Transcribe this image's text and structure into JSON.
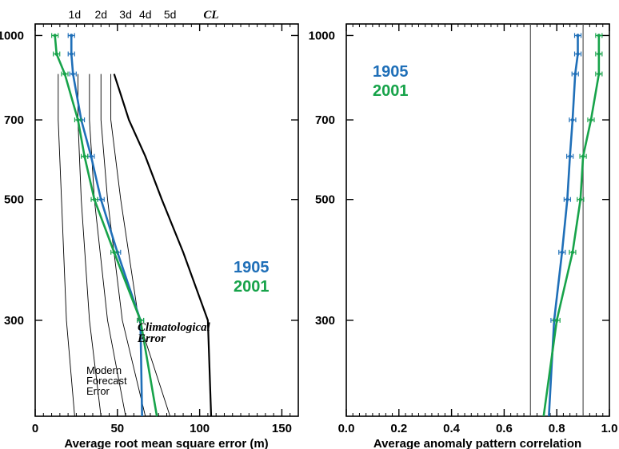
{
  "colors": {
    "y1905": "#1f6fb8",
    "y2001": "#17a34a",
    "frame": "#000000",
    "guide": "#555555"
  },
  "chart_data": [
    {
      "type": "line",
      "xlabel": "Average root mean square error (m)",
      "ylabel": "",
      "xlim": [
        0,
        160
      ],
      "ylim": [
        1050,
        200
      ],
      "y_scale": "log",
      "x_ticks": [
        0,
        50,
        100,
        150
      ],
      "y_ticks": [
        300,
        500,
        700,
        1000
      ],
      "legend": [
        "1905",
        "2001"
      ],
      "legend_placement": "right-middle",
      "series": [
        {
          "name": "1905",
          "color": "#1f6fb8",
          "x": [
            22,
            22,
            23,
            28,
            34,
            40,
            50,
            64,
            65
          ],
          "y": [
            1000,
            925,
            850,
            700,
            600,
            500,
            400,
            300,
            200
          ]
        },
        {
          "name": "2001",
          "color": "#17a34a",
          "x": [
            12,
            13,
            18,
            26,
            30,
            36,
            48,
            64,
            74
          ],
          "y": [
            1000,
            925,
            850,
            700,
            600,
            500,
            400,
            300,
            200
          ]
        }
      ],
      "reference_lines": [
        {
          "label": "1d",
          "x": [
            14,
            14,
            16,
            19,
            24
          ],
          "y": [
            850,
            700,
            500,
            300,
            200
          ]
        },
        {
          "label": "2d",
          "x": [
            26,
            26,
            28,
            33,
            40
          ],
          "y": [
            850,
            700,
            500,
            300,
            200
          ]
        },
        {
          "label": "3d",
          "x": [
            33,
            33,
            36,
            44,
            55
          ],
          "y": [
            850,
            700,
            500,
            300,
            200
          ]
        },
        {
          "label": "4d",
          "x": [
            40,
            40,
            44,
            53,
            67
          ],
          "y": [
            850,
            700,
            500,
            300,
            200
          ]
        },
        {
          "label": "5d",
          "x": [
            46,
            46,
            52,
            63,
            82
          ],
          "y": [
            850,
            700,
            500,
            300,
            200
          ]
        },
        {
          "label": "CL",
          "x": [
            48,
            52,
            57,
            67,
            77,
            90,
            105,
            107
          ],
          "y": [
            850,
            780,
            700,
            600,
            500,
            400,
            300,
            200
          ]
        }
      ],
      "annotations": [
        "Climatological Error",
        "Modern Forecast Error"
      ]
    },
    {
      "type": "line",
      "xlabel": "Average anomaly pattern correlation",
      "ylabel": "",
      "xlim": [
        0.0,
        1.0
      ],
      "ylim": [
        1050,
        200
      ],
      "y_scale": "log",
      "x_ticks": [
        0.0,
        0.2,
        0.4,
        0.6,
        0.8,
        1.0
      ],
      "y_ticks": [
        300,
        500,
        700,
        1000
      ],
      "vertical_lines": [
        0.7,
        0.9
      ],
      "legend": [
        "1905",
        "2001"
      ],
      "legend_placement": "top-left",
      "series": [
        {
          "name": "1905",
          "color": "#1f6fb8",
          "x": [
            0.88,
            0.88,
            0.87,
            0.86,
            0.85,
            0.84,
            0.82,
            0.79,
            0.77
          ],
          "y": [
            1000,
            925,
            850,
            700,
            600,
            500,
            400,
            300,
            200
          ]
        },
        {
          "name": "2001",
          "color": "#17a34a",
          "x": [
            0.96,
            0.96,
            0.96,
            0.93,
            0.9,
            0.89,
            0.86,
            0.8,
            0.75
          ],
          "y": [
            1000,
            925,
            850,
            700,
            600,
            500,
            400,
            300,
            200
          ]
        }
      ]
    }
  ]
}
